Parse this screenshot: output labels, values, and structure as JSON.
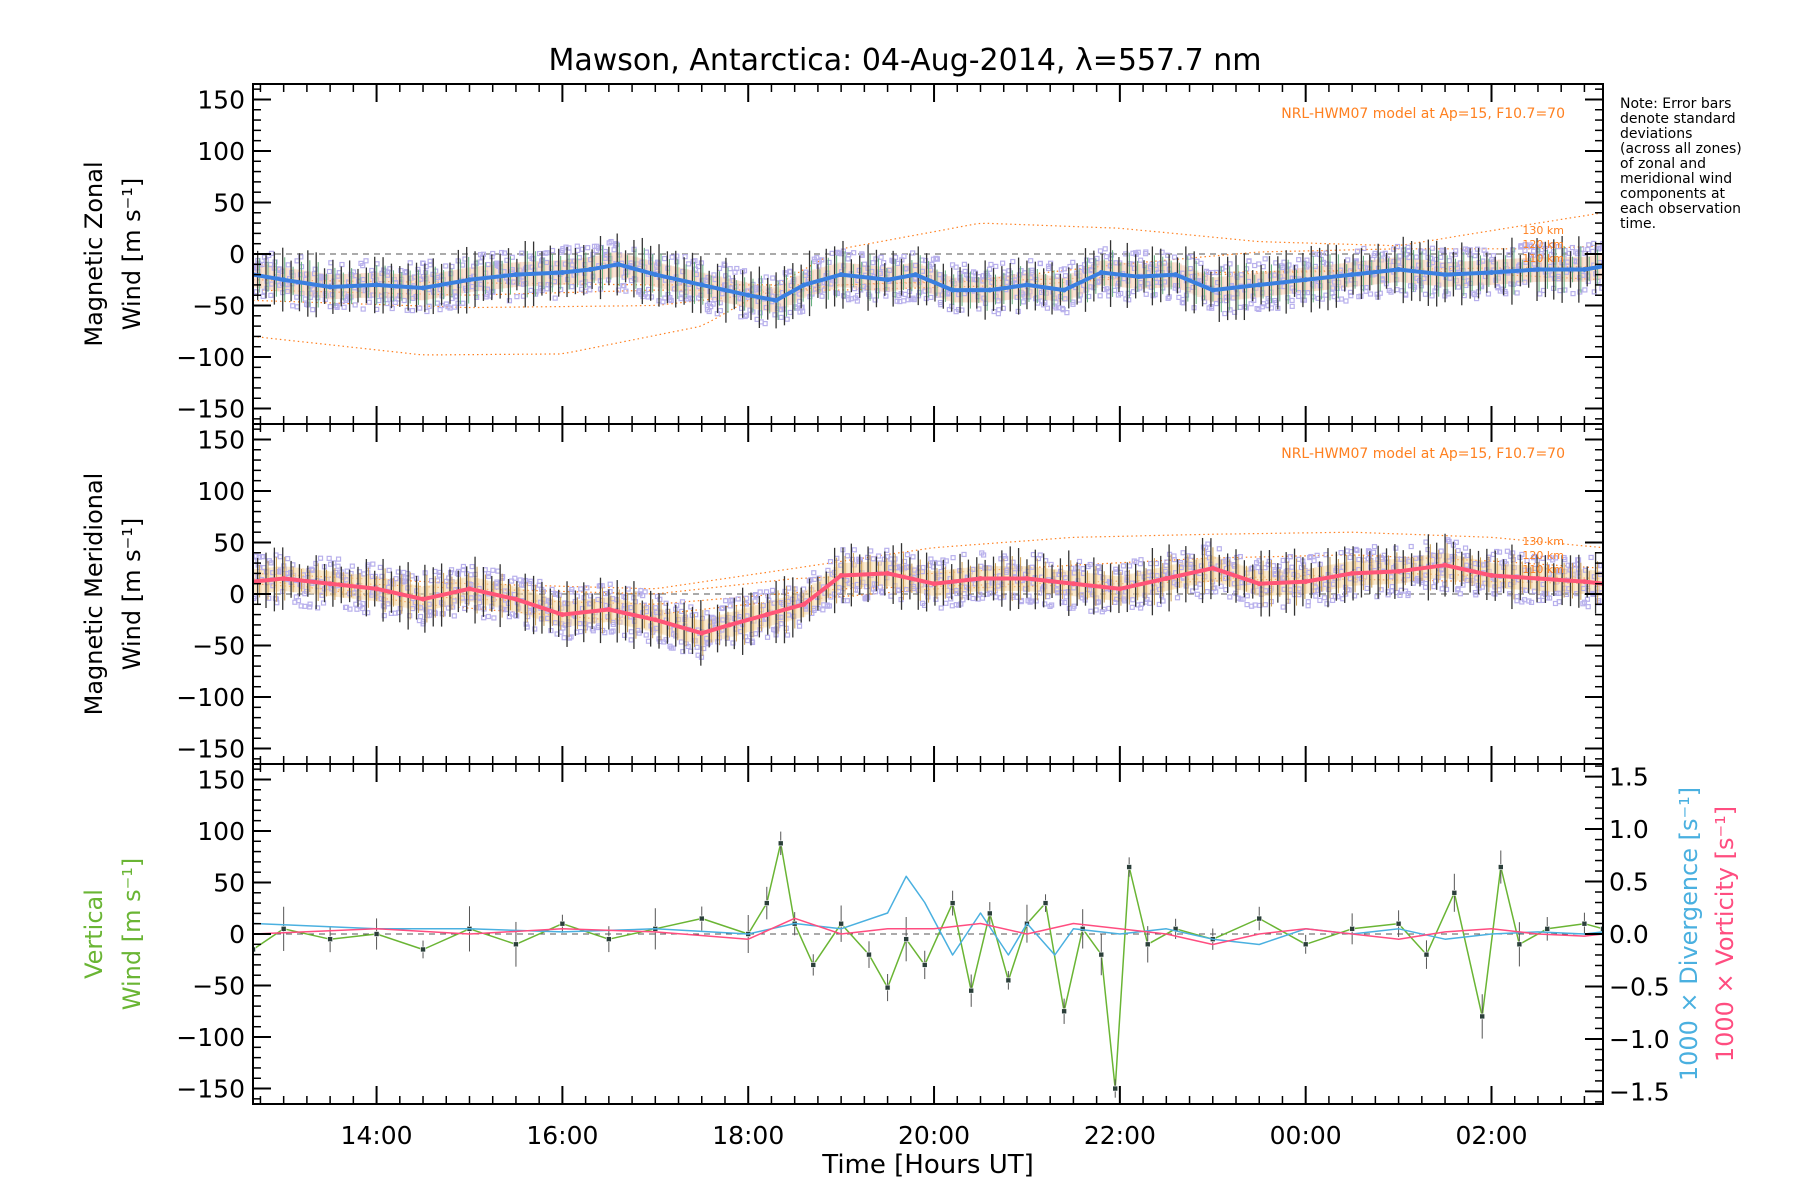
{
  "chart_data": {
    "type": "line",
    "title": "Mawson, Antarctica: 04-Aug-2014, λ=557.7 nm",
    "xlabel": "Time [Hours UT]",
    "x_unit": "hours UT, continuing past midnight (24 = 00:00)",
    "xlim": [
      12.67,
      27.2
    ],
    "x_ticks": [
      {
        "value": 14,
        "label": "14:00"
      },
      {
        "value": 16,
        "label": "16:00"
      },
      {
        "value": 18,
        "label": "18:00"
      },
      {
        "value": 20,
        "label": "20:00"
      },
      {
        "value": 22,
        "label": "22:00"
      },
      {
        "value": 24,
        "label": "00:00"
      },
      {
        "value": 26,
        "label": "02:00"
      }
    ],
    "note": "Note: Error bars denote standard deviations (across all zones) of zonal and meridional wind components at each observation time.",
    "note_lines": [
      "Note: Error bars",
      "denote standard",
      "deviations",
      "(across all zones)",
      "of zonal and",
      "meridional wind",
      "components at",
      "each observation",
      "time."
    ],
    "colors": {
      "zonal": "#3a7fe0",
      "meridional": "#ff5577",
      "vertical": "#6ab534",
      "divergence": "#4ab0e0",
      "vorticity": "#ff4d80",
      "model": "#ff8020",
      "zone_points": "#b8b0ec",
      "error_bar": "#333333"
    },
    "panels": [
      {
        "name": "zonal",
        "ylabel_lines": [
          "Magnetic Zonal",
          "Wind [m s⁻¹]"
        ],
        "ylim": [
          -165,
          165
        ],
        "y_ticks": [
          150,
          100,
          50,
          0,
          -50,
          -100,
          -150
        ],
        "model_label": "NRL-HWM07 model at Ap=15, F10.7=70",
        "model_height_labels": [
          "130 km",
          "120 km",
          "110 km"
        ],
        "model_curves": [
          {
            "name": "130 km",
            "x": [
              12.67,
              14.5,
              16,
              17.5,
              19,
              20.5,
              22,
              23.5,
              25,
              26.5,
              27.2
            ],
            "y": [
              -80,
              -98,
              -97,
              -70,
              5,
              30,
              25,
              12,
              8,
              30,
              40
            ]
          },
          {
            "name": "120 km",
            "x": [
              12.67,
              15,
              17,
              19,
              20.5,
              22,
              23.5,
              25,
              26.5,
              27.2
            ],
            "y": [
              -45,
              -52,
              -50,
              -30,
              -25,
              -10,
              2,
              5,
              5,
              8
            ]
          },
          {
            "name": "110 km",
            "x": [
              12.67,
              15,
              17,
              19,
              21,
              23,
              25,
              27.2
            ],
            "y": [
              -35,
              -40,
              -35,
              -35,
              -30,
              -18,
              -15,
              -25
            ]
          },
          {
            "name": "100 km",
            "x": [
              12.67,
              15,
              17,
              19,
              21,
              23,
              25,
              27.2
            ],
            "y": [
              -25,
              -28,
              -30,
              -30,
              -25,
              -20,
              -15,
              -12
            ]
          }
        ],
        "series": [
          {
            "name": "zonal",
            "x": [
              12.67,
              13.0,
              13.5,
              14.0,
              14.5,
              15.0,
              15.5,
              16.0,
              16.3,
              16.6,
              17.0,
              17.5,
              18.0,
              18.3,
              18.6,
              19.0,
              19.5,
              19.8,
              20.2,
              20.6,
              21.0,
              21.4,
              21.8,
              22.2,
              22.6,
              23.0,
              23.5,
              24.0,
              24.5,
              25.0,
              25.5,
              26.0,
              26.5,
              27.0,
              27.2
            ],
            "y": [
              -20,
              -25,
              -32,
              -30,
              -33,
              -25,
              -20,
              -18,
              -15,
              -10,
              -20,
              -30,
              -40,
              -45,
              -30,
              -20,
              -25,
              -20,
              -35,
              -35,
              -30,
              -35,
              -18,
              -22,
              -20,
              -35,
              -30,
              -25,
              -20,
              -15,
              -20,
              -18,
              -15,
              -15,
              -12
            ]
          }
        ]
      },
      {
        "name": "meridional",
        "ylabel_lines": [
          "Magnetic Meridional",
          "Wind [m s⁻¹]"
        ],
        "ylim": [
          -165,
          165
        ],
        "y_ticks": [
          150,
          100,
          50,
          0,
          -50,
          -100,
          -150
        ],
        "model_label": "NRL-HWM07 model at Ap=15, F10.7=70",
        "model_height_labels": [
          "130 km",
          "120 km",
          "110 km"
        ],
        "model_curves": [
          {
            "name": "130 km",
            "x": [
              12.67,
              15,
              17,
              18.5,
              20,
              21.5,
              23,
              24.5,
              26,
              27.2
            ],
            "y": [
              20,
              10,
              5,
              25,
              45,
              55,
              58,
              60,
              55,
              45
            ]
          },
          {
            "name": "120 km",
            "x": [
              12.67,
              15,
              17,
              18.5,
              20,
              21.5,
              23,
              24.5,
              26,
              27.2
            ],
            "y": [
              15,
              5,
              0,
              15,
              20,
              28,
              35,
              38,
              32,
              25
            ]
          },
          {
            "name": "110 km",
            "x": [
              12.67,
              15,
              17,
              19,
              21,
              23,
              25,
              27.2
            ],
            "y": [
              10,
              -5,
              -10,
              5,
              10,
              15,
              20,
              15
            ]
          },
          {
            "name": "100 km",
            "x": [
              12.67,
              14.5,
              16.5,
              18,
              20,
              22,
              24,
              26,
              27.2
            ],
            "y": [
              15,
              -10,
              -25,
              -10,
              5,
              10,
              15,
              12,
              10
            ]
          }
        ],
        "series": [
          {
            "name": "meridional",
            "x": [
              12.67,
              13.0,
              13.5,
              14.0,
              14.5,
              15.0,
              15.5,
              16.0,
              16.5,
              17.0,
              17.5,
              17.8,
              18.2,
              18.6,
              19.0,
              19.5,
              20.0,
              20.5,
              21.0,
              21.5,
              22.0,
              22.5,
              23.0,
              23.5,
              24.0,
              24.5,
              25.0,
              25.5,
              26.0,
              26.5,
              27.0,
              27.2
            ],
            "y": [
              12,
              15,
              10,
              5,
              -5,
              5,
              -5,
              -20,
              -15,
              -25,
              -38,
              -30,
              -20,
              -10,
              18,
              20,
              10,
              15,
              15,
              10,
              5,
              15,
              25,
              10,
              12,
              20,
              22,
              28,
              18,
              15,
              12,
              10
            ]
          }
        ]
      },
      {
        "name": "vertical",
        "ylabel_lines": [
          "Vertical",
          "Wind [m s⁻¹]"
        ],
        "ylim": [
          -165,
          165
        ],
        "y_ticks": [
          150,
          100,
          50,
          0,
          -50,
          -100,
          -150
        ],
        "y2_label_divergence": "1000 × Divergence [s⁻¹]",
        "y2_label_vorticity": "1000 × Vorticity [s⁻¹]",
        "y2_lim": [
          -1.62,
          1.62
        ],
        "y2_ticks": [
          {
            "value": 1.5,
            "label": "1.5"
          },
          {
            "value": 1.0,
            "label": "1.0"
          },
          {
            "value": 0.5,
            "label": "0.5"
          },
          {
            "value": 0.0,
            "label": "0.0"
          },
          {
            "value": -0.5,
            "label": "−0.5"
          },
          {
            "value": -1.0,
            "label": "−1.0"
          },
          {
            "value": -1.5,
            "label": "−1.5"
          }
        ],
        "series": [
          {
            "name": "vertical",
            "x": [
              12.67,
              13.0,
              13.5,
              14.0,
              14.5,
              15.0,
              15.5,
              16.0,
              16.5,
              17.0,
              17.5,
              18.0,
              18.2,
              18.35,
              18.5,
              18.7,
              19.0,
              19.3,
              19.5,
              19.7,
              19.9,
              20.2,
              20.4,
              20.6,
              20.8,
              21.0,
              21.2,
              21.4,
              21.6,
              21.8,
              21.95,
              22.1,
              22.3,
              22.6,
              23.0,
              23.5,
              24.0,
              24.5,
              25.0,
              25.3,
              25.6,
              25.9,
              26.1,
              26.3,
              26.6,
              27.0,
              27.2
            ],
            "y": [
              -15,
              5,
              -5,
              0,
              -15,
              5,
              -10,
              10,
              -5,
              5,
              15,
              0,
              30,
              88,
              10,
              -30,
              10,
              -20,
              -52,
              -5,
              -30,
              30,
              -55,
              20,
              -45,
              10,
              30,
              -75,
              5,
              -20,
              -150,
              65,
              -10,
              5,
              -5,
              15,
              -10,
              5,
              10,
              -20,
              40,
              -80,
              65,
              -10,
              5,
              10,
              5
            ]
          },
          {
            "name": "divergence",
            "axis": "y2",
            "x": [
              12.67,
              14.0,
              15.0,
              16.0,
              17.0,
              18.0,
              18.5,
              19.0,
              19.5,
              19.7,
              19.9,
              20.2,
              20.5,
              20.8,
              21.0,
              21.3,
              21.5,
              22.0,
              22.5,
              23.0,
              23.5,
              24.0,
              24.5,
              25.0,
              25.5,
              26.0,
              26.5,
              27.0,
              27.2
            ],
            "y": [
              0.1,
              0.05,
              0.05,
              0.02,
              0.05,
              0.0,
              0.1,
              0.05,
              0.2,
              0.55,
              0.3,
              -0.2,
              0.2,
              -0.2,
              0.1,
              -0.2,
              0.05,
              0.0,
              0.05,
              -0.05,
              -0.1,
              0.05,
              0.0,
              0.05,
              -0.05,
              0.0,
              0.02,
              0.0,
              0.02
            ]
          },
          {
            "name": "vorticity",
            "axis": "y2",
            "x": [
              12.67,
              14.0,
              15.0,
              16.0,
              17.0,
              18.0,
              18.5,
              19.0,
              19.5,
              20.0,
              20.5,
              21.0,
              21.5,
              22.0,
              22.5,
              23.0,
              23.5,
              24.0,
              24.5,
              25.0,
              25.5,
              26.0,
              26.5,
              27.0,
              27.2
            ],
            "y": [
              0.0,
              0.05,
              0.0,
              0.05,
              0.02,
              -0.05,
              0.15,
              0.0,
              0.05,
              0.05,
              0.1,
              0.0,
              0.1,
              0.05,
              0.0,
              -0.1,
              0.0,
              0.05,
              0.0,
              -0.05,
              0.02,
              0.05,
              0.0,
              -0.02,
              0.0
            ]
          }
        ]
      }
    ]
  }
}
